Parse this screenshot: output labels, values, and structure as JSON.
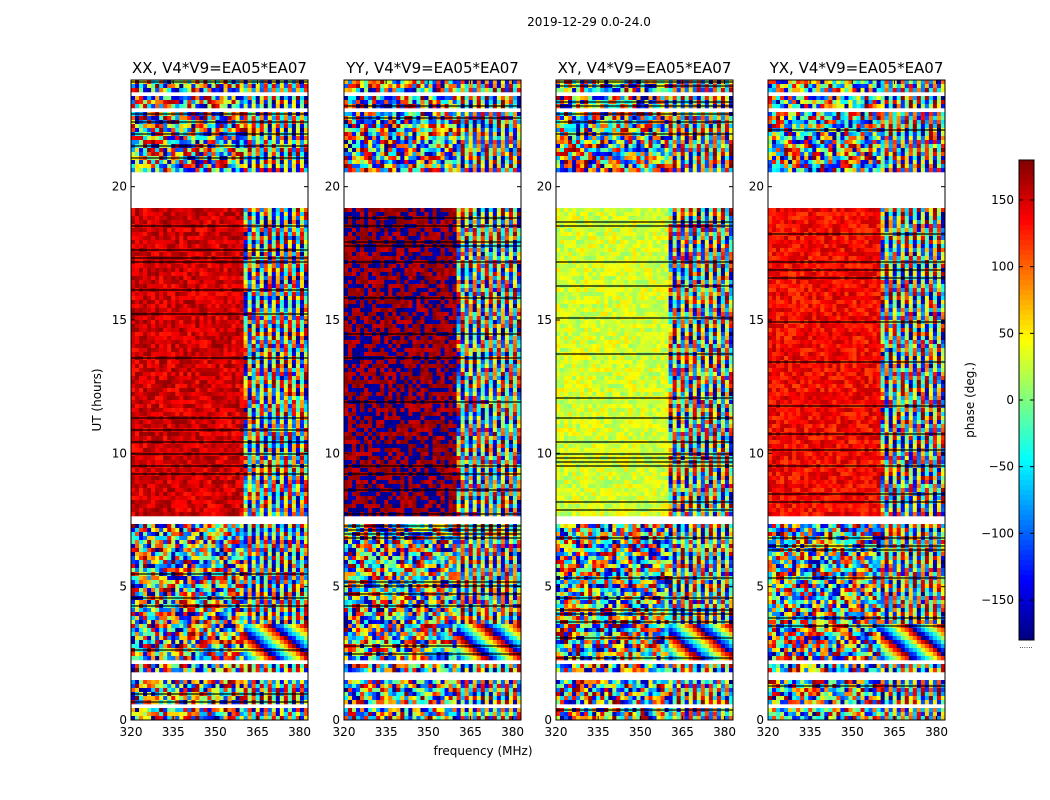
{
  "chart_data": {
    "type": "heatmap",
    "suptitle": "2019-12-29 0.0-24.0",
    "xlabel": "frequency (MHz)",
    "ylabel": "UT (hours)",
    "colorbar_label": "phase (deg.)",
    "colormap": "jet",
    "colorbar_range": [
      -180,
      180
    ],
    "colorbar_ticks": [
      -150,
      -100,
      -50,
      0,
      50,
      100,
      150
    ],
    "colorbar_extra": "......",
    "xlim": [
      320,
      383
    ],
    "xticks": [
      320,
      335,
      350,
      365,
      380
    ],
    "ylim": [
      0,
      24
    ],
    "yticks": [
      0,
      5,
      10,
      15,
      20
    ],
    "flagged_ut_ranges": [
      [
        0.5,
        0.65
      ],
      [
        1.55,
        1.75
      ],
      [
        2.05,
        2.2
      ],
      [
        3.55,
        3.65
      ],
      [
        5.35,
        5.45
      ],
      [
        7.35,
        7.6
      ],
      [
        19.25,
        20.6
      ],
      [
        22.85,
        23.0
      ],
      [
        23.45,
        23.55
      ]
    ],
    "freq_break_mhz": 360,
    "panels": [
      {
        "name": "XX",
        "title": "XX, V4*V9=EA05*EA07",
        "mean_phase_deg_12_19h": 150
      },
      {
        "name": "YY",
        "title": "YY, V4*V9=EA05*EA07",
        "mean_phase_deg_12_19h": 175
      },
      {
        "name": "XY",
        "title": "XY, V4*V9=EA05*EA07",
        "mean_phase_deg_12_19h": 30
      },
      {
        "name": "YX",
        "title": "YX, V4*V9=EA05*EA07",
        "mean_phase_deg_12_19h": 135
      }
    ]
  }
}
